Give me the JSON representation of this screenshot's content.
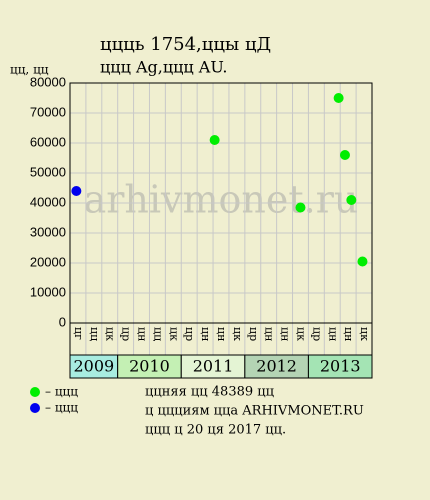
{
  "chart_data": {
    "type": "scatter",
    "title": "ццць 1754,ццы цД",
    "subtitle": "ццц Ag,ццц AU.",
    "y_label": "цц, цц",
    "watermark": "arhivmonet.ru",
    "categories": [
      "цг",
      "цц",
      "цк",
      "цр",
      "цн",
      "цц",
      "цк",
      "цр",
      "цн",
      "цн",
      "цк",
      "цр",
      "цн",
      "цн",
      "цк",
      "цр",
      "цн",
      "цн",
      "цк"
    ],
    "years": [
      {
        "label": "2009",
        "span": 3,
        "color": "#a8ece0"
      },
      {
        "label": "2010",
        "span": 4,
        "color": "#c4f0b4"
      },
      {
        "label": "2011",
        "span": 4,
        "color": "#e4f4d4"
      },
      {
        "label": "2012",
        "span": 4,
        "color": "#b4d4b4"
      },
      {
        "label": "2013",
        "span": 4,
        "color": "#a4e4b4"
      }
    ],
    "xlim": [
      0,
      19
    ],
    "ylim": [
      0,
      80000
    ],
    "yticks": [
      0,
      10000,
      20000,
      30000,
      40000,
      50000,
      60000,
      70000,
      80000
    ],
    "grid": true,
    "series": [
      {
        "name": "– ццц",
        "color": "#00ee00",
        "x": [
          9.1,
          14.5,
          16.9,
          17.3,
          17.7,
          18.4
        ],
        "values": [
          61000,
          38500,
          75000,
          56000,
          41000,
          20500
        ]
      },
      {
        "name": "– ццц",
        "color": "#0000ee",
        "x": [
          0.4
        ],
        "values": [
          44000
        ]
      }
    ],
    "notes": [
      "ццняя цц 48389 цц",
      "ц ццциям цца ARHIVMONET.RU",
      "ццц ц 20 ця 2017 цц."
    ]
  }
}
